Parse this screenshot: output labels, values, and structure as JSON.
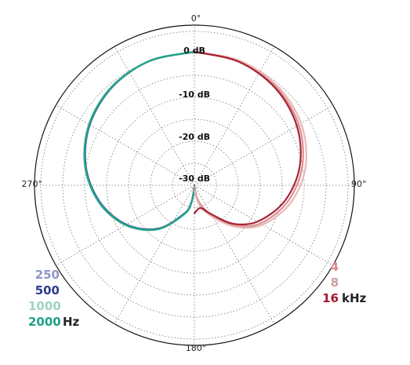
{
  "chart_data": {
    "type": "line",
    "subtype": "polar",
    "angle_labels": [
      "0°",
      "90°",
      "180°",
      "270°"
    ],
    "radial_axis": {
      "min_db": -30,
      "max_db": 0,
      "ring_labels": [
        "0 dB",
        "-10 dB",
        "-20 dB",
        "-30 dB"
      ]
    },
    "grid": "dotted",
    "legend": {
      "left": {
        "labels": [
          "250",
          "500",
          "1000",
          "2000"
        ],
        "unit": "Hz"
      },
      "right": {
        "labels": [
          "4",
          "8",
          "16"
        ],
        "unit": "kHz"
      }
    },
    "series": [
      {
        "name": "250",
        "color": "#8e96c8",
        "angles_deg": [
          0,
          20,
          40,
          60,
          80,
          100,
          120,
          140,
          160,
          170,
          180
        ],
        "values_db": [
          0,
          -0.3,
          -1.2,
          -2.8,
          -5.2,
          -8.5,
          -12.5,
          -17.5,
          -23.5,
          -26.5,
          -30
        ]
      },
      {
        "name": "500",
        "color": "#2c3d8f",
        "angles_deg": [
          0,
          20,
          40,
          60,
          80,
          100,
          120,
          140,
          160,
          170,
          180
        ],
        "values_db": [
          0,
          -0.3,
          -1.2,
          -2.8,
          -5.2,
          -8.4,
          -12.4,
          -17.4,
          -23.4,
          -26.4,
          -30
        ]
      },
      {
        "name": "1000",
        "color": "#9fd3c2",
        "angles_deg": [
          0,
          20,
          40,
          60,
          80,
          100,
          120,
          140,
          160,
          170,
          180
        ],
        "values_db": [
          0,
          -0.3,
          -1.1,
          -2.6,
          -5.0,
          -8.2,
          -12.2,
          -17.2,
          -23.2,
          -26.2,
          -30
        ]
      },
      {
        "name": "2000",
        "color": "#1fa187",
        "angles_deg": [
          0,
          20,
          40,
          60,
          80,
          100,
          120,
          140,
          160,
          170,
          180
        ],
        "values_db": [
          0,
          -0.3,
          -1.1,
          -2.7,
          -5.1,
          -8.3,
          -12.3,
          -17.3,
          -23.3,
          -26.3,
          -30
        ]
      },
      {
        "name": "4",
        "color": "#d88a8a",
        "angles_deg": [
          0,
          20,
          40,
          60,
          80,
          100,
          120,
          135,
          150,
          165,
          180
        ],
        "values_db": [
          0,
          -0.4,
          -1.3,
          -2.9,
          -5.4,
          -8.8,
          -13.0,
          -17.5,
          -22.5,
          -26.5,
          -30
        ]
      },
      {
        "name": "8",
        "color": "#e8b4b4",
        "angles_deg": [
          0,
          20,
          40,
          60,
          80,
          100,
          120,
          135,
          150,
          165,
          180
        ],
        "values_db": [
          0,
          -0.2,
          -0.9,
          -2.3,
          -4.6,
          -8.0,
          -12.4,
          -17.0,
          -22.0,
          -25.5,
          -29
        ]
      },
      {
        "name": "16",
        "color": "#a3192c",
        "angles_deg": [
          0,
          20,
          40,
          60,
          80,
          100,
          120,
          135,
          150,
          165,
          180
        ],
        "values_db": [
          0,
          -0.5,
          -1.6,
          -3.4,
          -6.0,
          -9.5,
          -13.8,
          -18.0,
          -22.8,
          -25.0,
          -24
        ]
      }
    ]
  }
}
